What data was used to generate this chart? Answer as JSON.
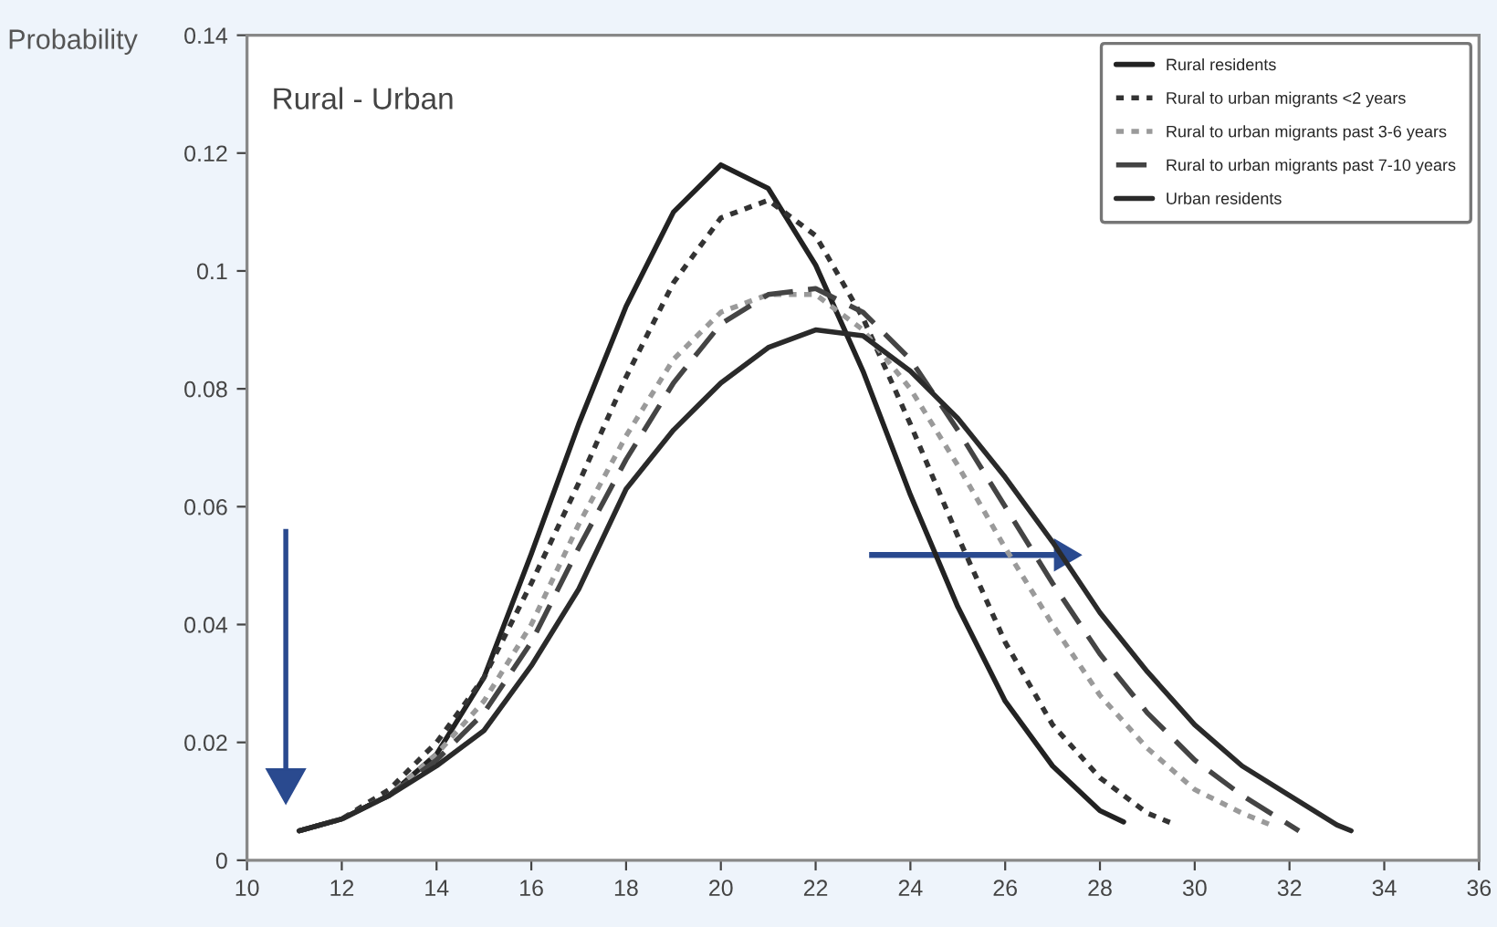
{
  "chart_data": {
    "type": "line",
    "title": "Rural - Urban",
    "ylabel": "Probability",
    "xlim": [
      10,
      36
    ],
    "xticks": [
      10,
      12,
      14,
      16,
      18,
      20,
      22,
      24,
      26,
      28,
      30,
      32,
      34,
      36
    ],
    "ylim": [
      0,
      0.14
    ],
    "yticks": [
      0,
      0.02,
      0.04,
      0.06,
      0.08,
      0.1,
      0.12,
      0.14
    ],
    "grid": false,
    "legend": "top right",
    "marker": "none",
    "series": [
      {
        "name": "Rural residents",
        "color": "#222222",
        "line_style": "solid",
        "x": [
          11.1,
          12,
          13,
          14,
          15,
          16,
          17,
          18,
          19,
          20,
          21,
          22,
          23,
          24,
          25,
          26,
          27,
          28,
          28.5
        ],
        "values": [
          0.005,
          0.007,
          0.011,
          0.018,
          0.031,
          0.052,
          0.074,
          0.094,
          0.11,
          0.118,
          0.114,
          0.101,
          0.083,
          0.062,
          0.043,
          0.027,
          0.016,
          0.0084,
          0.0065
        ]
      },
      {
        "name": "Rural to urban migrants <2 years",
        "color": "#333333",
        "line_style": "dotted",
        "x": [
          11.1,
          12,
          13,
          14,
          15,
          16,
          17,
          18,
          19,
          20,
          21,
          22,
          23,
          24,
          25,
          26,
          27,
          28,
          29,
          29.6
        ],
        "values": [
          0.005,
          0.007,
          0.012,
          0.02,
          0.031,
          0.047,
          0.064,
          0.082,
          0.098,
          0.109,
          0.112,
          0.106,
          0.092,
          0.074,
          0.055,
          0.037,
          0.023,
          0.014,
          0.008,
          0.006
        ]
      },
      {
        "name": "Rural to urban migrants past 3-6 years",
        "color": "#9a9a9a",
        "line_style": "dotted",
        "x": [
          11.1,
          12,
          13,
          14,
          15,
          16,
          17,
          18,
          19,
          20,
          21,
          22,
          23,
          24,
          25,
          26,
          27,
          28,
          29,
          30,
          31,
          31.6
        ],
        "values": [
          0.005,
          0.007,
          0.011,
          0.018,
          0.027,
          0.04,
          0.057,
          0.072,
          0.085,
          0.093,
          0.096,
          0.096,
          0.09,
          0.08,
          0.067,
          0.053,
          0.04,
          0.028,
          0.019,
          0.012,
          0.008,
          0.006
        ]
      },
      {
        "name": "Rural to urban migrants past 7-10 years",
        "color": "#444444",
        "line_style": "dashed",
        "x": [
          11.1,
          12,
          13,
          14,
          15,
          16,
          17,
          18,
          19,
          20,
          21,
          22,
          23,
          24,
          25,
          26,
          27,
          28,
          29,
          30,
          31,
          32,
          32.2
        ],
        "values": [
          0.005,
          0.007,
          0.011,
          0.017,
          0.025,
          0.037,
          0.053,
          0.068,
          0.081,
          0.091,
          0.096,
          0.097,
          0.093,
          0.085,
          0.073,
          0.06,
          0.047,
          0.035,
          0.025,
          0.017,
          0.011,
          0.006,
          0.005
        ]
      },
      {
        "name": "Urban residents",
        "color": "#2a2a2a",
        "line_style": "solid",
        "x": [
          11.1,
          12,
          13,
          14,
          15,
          16,
          17,
          18,
          19,
          20,
          21,
          22,
          23,
          24,
          25,
          26,
          27,
          28,
          29,
          30,
          31,
          32,
          33,
          33.3
        ],
        "values": [
          0.005,
          0.007,
          0.011,
          0.016,
          0.022,
          0.033,
          0.046,
          0.063,
          0.073,
          0.081,
          0.087,
          0.09,
          0.089,
          0.083,
          0.075,
          0.065,
          0.054,
          0.042,
          0.032,
          0.023,
          0.016,
          0.011,
          0.006,
          0.005
        ]
      }
    ]
  }
}
